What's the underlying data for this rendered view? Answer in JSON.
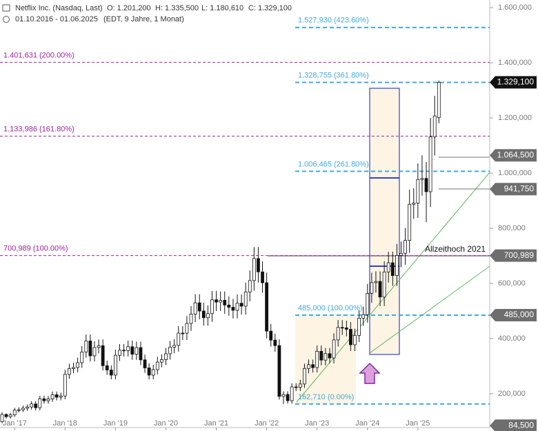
{
  "chart_data": {
    "type": "candlestick",
    "title": "Netflix Inc. (Nasdaq, Last)",
    "ohlc_text": [
      "O: 1.201,200",
      "H: 1.335,500",
      "L: 1.180,610",
      "C: 1.329,100"
    ],
    "period": "01.10.2016 - 01.06.2025",
    "period_note": "(EDT, 9 Jahre, 1 Monat)",
    "categories": [
      null,
      null,
      null,
      "Jan '17",
      null,
      null,
      null,
      null,
      null,
      null,
      null,
      null,
      null,
      null,
      null,
      "Jan '18",
      null,
      null,
      null,
      null,
      null,
      null,
      null,
      null,
      null,
      null,
      null,
      "Jan '19",
      null,
      null,
      null,
      null,
      null,
      null,
      null,
      null,
      null,
      null,
      null,
      "Jan '20",
      null,
      null,
      null,
      null,
      null,
      null,
      null,
      null,
      null,
      null,
      null,
      "Jan '21",
      null,
      null,
      null,
      null,
      null,
      null,
      null,
      null,
      null,
      null,
      null,
      "Jan '22",
      null,
      null,
      null,
      null,
      null,
      null,
      null,
      null,
      null,
      null,
      null,
      "Jan '23",
      null,
      null,
      null,
      null,
      null,
      null,
      null,
      null,
      null,
      null,
      null,
      "Jan '24",
      null,
      null,
      null,
      null,
      null,
      null,
      null,
      null,
      null,
      null,
      null,
      "Jan '25",
      null,
      null,
      null,
      null,
      null
    ],
    "open": [
      99.1,
      124.9,
      117.0,
      123.8,
      140.7,
      142.1,
      147.8,
      152.2,
      163.1,
      149.4,
      181.7,
      174.7,
      181.4,
      196.4,
      187.6,
      192.0,
      270.3,
      291.4,
      295.4,
      312.5,
      351.6,
      391.4,
      337.5,
      367.7,
      374.1,
      301.8,
      286.1,
      267.7,
      339.5,
      358.1,
      356.6,
      370.5,
      343.3,
      367.3,
      323.0,
      293.8,
      267.6,
      287.4,
      314.7,
      323.6,
      345.1,
      369.0,
      375.5,
      419.9,
      419.7,
      455.0,
      488.9,
      529.6,
      500.0,
      475.7,
      490.7,
      540.7,
      532.4,
      538.9,
      521.7,
      513.5,
      502.8,
      528.2,
      517.6,
      569.2,
      610.3,
      690.3,
      641.9,
      602.4,
      427.1,
      394.5,
      374.6,
      190.4,
      197.4,
      174.9,
      224.9,
      223.6,
      235.4,
      291.9,
      305.5,
      294.9,
      353.9,
      322.1,
      345.5,
      329.9,
      395.2,
      440.5,
      439.0,
      433.7,
      377.6,
      411.7,
      474.0,
      486.9,
      564.1,
      602.9,
      607.3,
      550.6,
      641.6,
      674.9,
      628.4,
      701.4,
      709.3,
      756.0,
      886.8,
      891.3,
      976.8,
      980.6,
      932.5,
      1131.7,
      1201.2
    ],
    "high": [
      133,
      129,
      131,
      149,
      151,
      157,
      161,
      173,
      173,
      193,
      193,
      192,
      208,
      208,
      204,
      287,
      309,
      313,
      331,
      373,
      415,
      415,
      390,
      397,
      397,
      320,
      303,
      360,
      380,
      380,
      393,
      393,
      389,
      389,
      342,
      311,
      305,
      334,
      343,
      366,
      391,
      398,
      445,
      445,
      482,
      518,
      561,
      561,
      530,
      520,
      573,
      573,
      571,
      571,
      553,
      544,
      560,
      560,
      603,
      647,
      732,
      732,
      680,
      639,
      453,
      418,
      397,
      209,
      209,
      238,
      238,
      250,
      309,
      324,
      324,
      375,
      375,
      366,
      366,
      419,
      467,
      467,
      465,
      460,
      436,
      502,
      516,
      598,
      639,
      644,
      644,
      680,
      715,
      715,
      743,
      752,
      801,
      940,
      945,
      1035,
      1064.5,
      1040,
      1200,
      1280,
      1335.5
    ],
    "low": [
      93,
      110,
      110,
      116,
      132,
      134,
      139,
      143,
      140,
      140,
      164,
      164,
      171,
      176,
      176,
      180,
      254,
      274,
      278,
      294,
      331,
      317,
      317,
      346,
      284,
      269,
      252,
      252,
      319,
      335,
      335,
      323,
      323,
      304,
      276,
      252,
      252,
      270,
      296,
      304,
      324,
      347,
      353,
      395,
      395,
      428,
      460,
      470,
      447,
      447,
      461,
      500,
      500,
      490,
      483,
      473,
      473,
      487,
      487,
      535,
      574,
      603,
      566,
      401,
      371,
      352,
      179,
      162.71,
      164,
      164,
      210,
      210,
      221,
      274,
      277,
      277,
      303,
      303,
      310,
      310,
      371,
      413,
      408,
      355,
      355,
      387,
      446,
      458,
      530,
      567,
      518,
      518,
      603,
      591,
      591,
      659,
      667,
      711,
      834,
      838,
      918,
      822,
      877,
      1064,
      1180.61
    ],
    "close": [
      124.9,
      117.0,
      123.8,
      140.7,
      142.1,
      147.8,
      152.2,
      163.1,
      149.4,
      181.7,
      174.7,
      181.4,
      196.4,
      187.6,
      192.0,
      270.3,
      291.4,
      295.4,
      312.5,
      351.6,
      391.4,
      337.5,
      367.7,
      374.1,
      301.8,
      286.1,
      267.7,
      339.5,
      358.1,
      356.6,
      370.5,
      343.3,
      367.3,
      323.0,
      293.8,
      267.6,
      287.4,
      314.7,
      323.6,
      345.1,
      369.0,
      375.5,
      419.9,
      419.7,
      455.0,
      488.9,
      529.6,
      500.0,
      475.7,
      490.7,
      540.7,
      532.4,
      538.9,
      521.7,
      513.5,
      502.8,
      528.2,
      517.6,
      569.2,
      610.3,
      690.3,
      641.9,
      602.4,
      427.1,
      394.5,
      374.6,
      190.4,
      197.4,
      174.9,
      224.9,
      223.6,
      235.4,
      291.9,
      305.5,
      294.9,
      353.9,
      322.1,
      345.5,
      329.9,
      395.2,
      440.5,
      439.0,
      433.7,
      377.6,
      411.7,
      474.0,
      486.9,
      564.1,
      602.9,
      607.3,
      550.6,
      641.6,
      674.9,
      628.4,
      701.4,
      709.3,
      756.0,
      886.8,
      891.3,
      976.8,
      980.6,
      932.5,
      1131.7,
      1207.2,
      1329.1
    ],
    "up_color": "#ffffff",
    "down_color": "#111111",
    "ylim": [
      77.5,
      1627.5
    ],
    "yticks": [
      {
        "value": 200,
        "label": "200,000"
      },
      {
        "value": 400,
        "label": "400,000"
      },
      {
        "value": 600,
        "label": "600,000"
      },
      {
        "value": 800,
        "label": "800,000"
      },
      {
        "value": 1000,
        "label": "1.000,000"
      },
      {
        "value": 1200,
        "label": "1.200,000"
      },
      {
        "value": 1400,
        "label": "1.400,000"
      },
      {
        "value": 1600,
        "label": "1.600,000"
      }
    ],
    "fib_levels": [
      {
        "value": 1401.631,
        "label": "1.401,631 (200.00%)"
      },
      {
        "value": 1133.986,
        "label": "1.133,986 (161.80%)"
      },
      {
        "value": 700.989,
        "label": "700,989 (100.00%)"
      }
    ],
    "fib_color": "#a020a0",
    "fib_extension": [
      {
        "value": 1527.93,
        "label": "1.527,930 (423.60%)"
      },
      {
        "value": 1328.755,
        "label": "1.328,755 (361.80%)"
      },
      {
        "value": 1006.465,
        "label": "1.006,465 (261.80%)"
      },
      {
        "value": 485.0,
        "label": "485,000 (100.00%)"
      },
      {
        "value": 162.71,
        "label": "162,710 (0.00%)"
      }
    ],
    "extension_color": "#3fa9e0",
    "price_tags": [
      {
        "value": 1329.1,
        "label": "1.329,100",
        "color": "#111111"
      },
      {
        "value": 1064.5,
        "label": "1.064,500",
        "color": "#6e6e6e"
      },
      {
        "value": 941.75,
        "label": "941,750",
        "color": "#6e6e6e"
      },
      {
        "value": 700.989,
        "label": "700,989",
        "color": "#6e6e6e"
      },
      {
        "value": 485.0,
        "label": "485,000",
        "color": "#6e6e6e"
      },
      {
        "value": 84.5,
        "label": "84,500",
        "color": "#6e6e6e"
      }
    ],
    "annotation": "Allzeithoch 2021"
  }
}
